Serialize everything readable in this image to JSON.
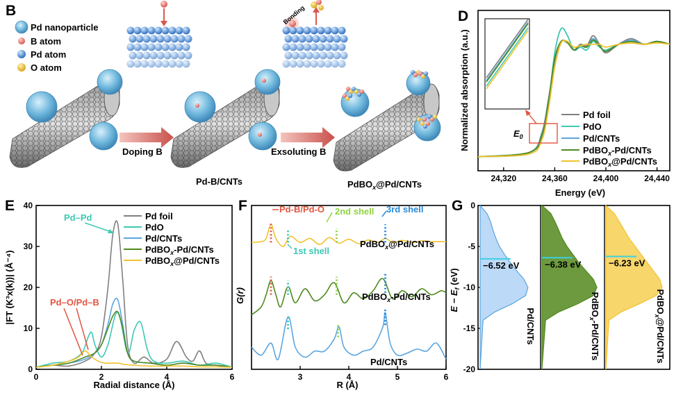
{
  "panels": {
    "B": {
      "label": "B",
      "legend": [
        "Pd nanoparticle",
        "B atom",
        "Pd atom",
        "O atom"
      ],
      "steps": [
        "Doping B",
        "Exsoluting B"
      ],
      "captions": [
        "Pd-B/CNTs",
        "PdBO",
        "x",
        "@Pd/CNTs"
      ],
      "bonding": "Bonding"
    },
    "D": {
      "label": "D"
    },
    "E": {
      "label": "E"
    },
    "F": {
      "label": "F"
    },
    "G": {
      "label": "G"
    }
  },
  "colors": {
    "pd_foil": "#7f7f7f",
    "pdo": "#3cc8b4",
    "pd_cnts": "#5aa6e0",
    "pdbox_pd_cnts": "#4e8a1f",
    "pdbox_at_pd_cnts": "#f2c230"
  },
  "chart_data": [
    {
      "panel": "D",
      "type": "line",
      "xlabel": "Energy (eV)",
      "ylabel": "Normalized absorption (a.u.)",
      "xlim": [
        24300,
        24450
      ],
      "x_ticks": [
        "24,320",
        "24,360",
        "24,400",
        "24,440"
      ],
      "x_tick_values": [
        24320,
        24360,
        24400,
        24440
      ],
      "legend": [
        "Pd foil",
        "PdO",
        "Pd/CNTs",
        "PdBO",
        "x",
        "-Pd/CNTs",
        "PdBO",
        "x",
        "@Pd/CNTs"
      ],
      "annotation": "E",
      "annotation_sub": "0",
      "series": [
        {
          "name": "Pd foil",
          "x": [
            24300,
            24340,
            24350,
            24355,
            24360,
            24365,
            24370,
            24375,
            24380,
            24385,
            24390,
            24395,
            24400,
            24410,
            24420,
            24430,
            24440,
            24450
          ],
          "y": [
            0.05,
            0.08,
            0.22,
            0.45,
            0.72,
            0.86,
            0.85,
            0.8,
            0.84,
            0.83,
            0.9,
            0.84,
            0.78,
            0.84,
            0.88,
            0.84,
            0.86,
            0.84
          ]
        },
        {
          "name": "PdO",
          "x": [
            24300,
            24340,
            24350,
            24355,
            24360,
            24365,
            24370,
            24375,
            24380,
            24385,
            24390,
            24395,
            24400,
            24410,
            24420,
            24430,
            24440,
            24450
          ],
          "y": [
            0.05,
            0.07,
            0.18,
            0.42,
            0.78,
            0.95,
            0.9,
            0.8,
            0.82,
            0.8,
            0.86,
            0.82,
            0.8,
            0.84,
            0.85,
            0.84,
            0.86,
            0.84
          ]
        },
        {
          "name": "Pd/CNTs",
          "x": [
            24300,
            24340,
            24350,
            24355,
            24360,
            24365,
            24370,
            24375,
            24380,
            24385,
            24390,
            24395,
            24400,
            24410,
            24420,
            24430,
            24440,
            24450
          ],
          "y": [
            0.05,
            0.08,
            0.21,
            0.44,
            0.73,
            0.86,
            0.85,
            0.8,
            0.83,
            0.82,
            0.88,
            0.83,
            0.79,
            0.84,
            0.87,
            0.84,
            0.86,
            0.84
          ]
        },
        {
          "name": "PdBOx-Pd/CNTs",
          "x": [
            24300,
            24340,
            24350,
            24355,
            24360,
            24365,
            24370,
            24375,
            24380,
            24385,
            24390,
            24395,
            24400,
            24410,
            24420,
            24430,
            24440,
            24450
          ],
          "y": [
            0.05,
            0.08,
            0.2,
            0.43,
            0.74,
            0.86,
            0.85,
            0.8,
            0.83,
            0.82,
            0.87,
            0.83,
            0.79,
            0.84,
            0.86,
            0.84,
            0.86,
            0.84
          ]
        },
        {
          "name": "PdBOx@Pd/CNTs",
          "x": [
            24300,
            24340,
            24350,
            24355,
            24360,
            24365,
            24370,
            24375,
            24380,
            24385,
            24390,
            24395,
            24400,
            24410,
            24420,
            24430,
            24440,
            24450
          ],
          "y": [
            0.05,
            0.07,
            0.17,
            0.38,
            0.68,
            0.85,
            0.86,
            0.82,
            0.83,
            0.84,
            0.84,
            0.84,
            0.82,
            0.84,
            0.85,
            0.84,
            0.85,
            0.84
          ]
        }
      ]
    },
    {
      "panel": "E",
      "type": "line",
      "xlabel": "Radial distance (Å)",
      "ylabel": "|FT (K³x(k))| (Å⁻⁴)",
      "xlim": [
        0,
        6
      ],
      "ylim": [
        0,
        40
      ],
      "x_ticks": [
        "0",
        "2",
        "4",
        "6"
      ],
      "y_ticks": [
        "0",
        "10",
        "20",
        "30",
        "40"
      ],
      "legend": [
        "Pd foil",
        "PdO",
        "Pd/CNTs",
        "PdBO",
        "x",
        "-Pd/CNTs",
        "PdBO",
        "x",
        "@Pd/CNTs"
      ],
      "annotations": [
        "Pd–Pd",
        "Pd–O/Pd–B"
      ],
      "series": [
        {
          "name": "Pd foil",
          "x": [
            0,
            0.5,
            1.0,
            1.5,
            1.8,
            2.0,
            2.2,
            2.35,
            2.5,
            2.65,
            2.8,
            3.0,
            3.3,
            3.6,
            4.0,
            4.3,
            4.6,
            4.8,
            5.0,
            5.2,
            5.5,
            6.0
          ],
          "y": [
            0.5,
            1,
            0.8,
            2,
            4,
            8,
            20,
            33,
            35.5,
            22,
            6,
            1.5,
            3,
            1.5,
            2.5,
            6.8,
            3,
            2,
            4.5,
            1.5,
            1,
            0.5
          ]
        },
        {
          "name": "PdO",
          "x": [
            0,
            0.5,
            1.0,
            1.4,
            1.6,
            1.7,
            1.8,
            2.0,
            2.2,
            2.5,
            2.8,
            3.0,
            3.2,
            3.4,
            3.6,
            4.0,
            4.5,
            5.0,
            5.5,
            6.0
          ],
          "y": [
            0.5,
            1.5,
            2,
            4,
            8,
            9,
            6,
            3,
            6,
            14,
            4,
            9.5,
            11.5,
            5,
            2,
            1.5,
            2,
            1,
            1.5,
            0.5
          ]
        },
        {
          "name": "Pd/CNTs",
          "x": [
            0,
            0.5,
            1.0,
            1.5,
            1.8,
            2.0,
            2.2,
            2.35,
            2.5,
            2.65,
            2.8,
            3.0,
            3.5,
            4.0,
            4.5,
            5.0,
            5.5,
            6.0
          ],
          "y": [
            0.5,
            1,
            1.5,
            2.5,
            4,
            6,
            11,
            16,
            17,
            11,
            4,
            2,
            1.5,
            1,
            1.5,
            1,
            1,
            0.5
          ]
        },
        {
          "name": "PdBOx-Pd/CNTs",
          "x": [
            0,
            0.5,
            1.0,
            1.5,
            1.8,
            2.0,
            2.2,
            2.35,
            2.5,
            2.65,
            2.8,
            3.0,
            3.5,
            4.0,
            4.5,
            5.0,
            5.5,
            6.0
          ],
          "y": [
            0.5,
            1,
            1.5,
            3,
            4,
            6,
            10,
            13,
            14,
            10,
            4,
            2,
            1.5,
            1,
            1.5,
            1,
            1,
            0.5
          ]
        },
        {
          "name": "PdBOx@Pd/CNTs",
          "x": [
            0,
            0.5,
            1.0,
            1.3,
            1.5,
            1.7,
            1.9,
            2.1,
            2.3,
            2.5,
            2.7,
            3.0,
            3.5,
            4.0,
            4.5,
            5.0,
            5.5,
            6.0
          ],
          "y": [
            0.5,
            1,
            2,
            3,
            4.5,
            3,
            2,
            1.5,
            1.5,
            1.5,
            1.2,
            1,
            0.8,
            0.8,
            0.8,
            0.6,
            0.6,
            0.5
          ]
        }
      ]
    },
    {
      "panel": "F",
      "type": "line",
      "xlabel": "R (Å)",
      "ylabel": "G(r)",
      "xlim": [
        2,
        6
      ],
      "x_ticks": [
        "3",
        "4",
        "5",
        "6"
      ],
      "x_tick_values": [
        3,
        4,
        5,
        6
      ],
      "annotations": [
        "Pd-B/Pd-O",
        "2nd shell",
        "3rd shell",
        "1st shell"
      ],
      "series_labels": [
        "PdBO",
        "x",
        "@Pd/CNTs",
        "PdBO",
        "x",
        "-Pd/CNTs",
        "Pd/CNTs"
      ],
      "series": [
        {
          "name": "PdBOx@Pd/CNTs",
          "offset": 2.6,
          "x": [
            2.0,
            2.2,
            2.3,
            2.4,
            2.5,
            2.65,
            2.8,
            3.0,
            3.2,
            3.4,
            3.6,
            3.8,
            4.0,
            4.2,
            4.4,
            4.6,
            4.75,
            4.9,
            5.1,
            5.3,
            5.5,
            5.7,
            6.0
          ],
          "y": [
            0,
            0.02,
            0.1,
            0.45,
            0.1,
            -0.1,
            0.15,
            0.0,
            0.1,
            -0.05,
            0.12,
            -0.02,
            0.08,
            -0.03,
            0.06,
            0.0,
            0.1,
            0.0,
            0.05,
            0.0,
            0.04,
            0.02,
            0.02
          ]
        },
        {
          "name": "PdBOx-Pd/CNTs",
          "offset": 1.3,
          "x": [
            2.0,
            2.2,
            2.3,
            2.4,
            2.5,
            2.6,
            2.75,
            2.9,
            3.1,
            3.3,
            3.5,
            3.7,
            3.9,
            4.1,
            4.3,
            4.5,
            4.7,
            4.9,
            5.1,
            5.3,
            5.5,
            5.7,
            5.9,
            6.0
          ],
          "y": [
            -0.5,
            -0.3,
            0.0,
            0.35,
            0.0,
            -0.3,
            0.2,
            -0.2,
            0.15,
            -0.15,
            0.0,
            0.3,
            -0.2,
            0.05,
            -0.1,
            0.1,
            0.4,
            -0.1,
            0.1,
            -0.05,
            0.15,
            0.0,
            0.1,
            0.05
          ]
        },
        {
          "name": "Pd/CNTs",
          "offset": 0.0,
          "x": [
            2.0,
            2.2,
            2.4,
            2.55,
            2.75,
            2.9,
            3.1,
            3.3,
            3.5,
            3.7,
            3.8,
            3.9,
            4.1,
            4.3,
            4.5,
            4.7,
            4.75,
            4.85,
            5.0,
            5.2,
            5.4,
            5.6,
            5.8,
            6.0
          ],
          "y": [
            0.0,
            -0.2,
            0.1,
            -0.3,
            0.75,
            0.0,
            -0.25,
            -0.1,
            -0.1,
            0.2,
            0.5,
            0.0,
            -0.2,
            -0.1,
            0.0,
            0.5,
            0.85,
            0.1,
            -0.2,
            -0.15,
            -0.05,
            -0.1,
            0.1,
            -0.3
          ]
        }
      ]
    },
    {
      "panel": "G",
      "type": "area",
      "ylabel": "E − E",
      "ylabel_sub": "f",
      "ylabel_unit": " (eV)",
      "ylim": [
        -20,
        0
      ],
      "y_ticks": [
        "0",
        "-5",
        "-10",
        "-15",
        "-20"
      ],
      "sample_labels": [
        "Pd/CNTs",
        "PdBO",
        "x",
        "-Pd/CNTs",
        "PdBO",
        "x",
        "@Pd/CNTs"
      ],
      "series": [
        {
          "name": "Pd/CNTs",
          "d_band_center_label": "−6.52 eV",
          "d_band_center": -6.52,
          "e": [
            0,
            -1,
            -2,
            -3,
            -4,
            -5,
            -6,
            -7,
            -8,
            -9,
            -10,
            -11,
            -12,
            -13,
            -14,
            -20
          ],
          "dos": [
            0.0,
            0.12,
            0.18,
            0.22,
            0.27,
            0.33,
            0.42,
            0.52,
            0.63,
            0.75,
            0.82,
            0.78,
            0.55,
            0.25,
            0.05,
            0.0
          ]
        },
        {
          "name": "PdBOx-Pd/CNTs",
          "d_band_center_label": "−6.38 eV",
          "d_band_center": -6.38,
          "e": [
            0,
            -1,
            -2,
            -3,
            -4,
            -5,
            -6,
            -7,
            -8,
            -9,
            -10,
            -11,
            -12,
            -13,
            -14,
            -20
          ],
          "dos": [
            0.0,
            0.15,
            0.22,
            0.28,
            0.34,
            0.42,
            0.52,
            0.62,
            0.74,
            0.86,
            0.92,
            0.86,
            0.6,
            0.28,
            0.06,
            0.0
          ]
        },
        {
          "name": "PdBOx@Pd/CNTs",
          "d_band_center_label": "−6.23 eV",
          "d_band_center": -6.23,
          "e": [
            0,
            -1,
            -2,
            -3,
            -4,
            -5,
            -6,
            -7,
            -8,
            -9,
            -10,
            -11,
            -12,
            -13,
            -14,
            -20
          ],
          "dos": [
            0.0,
            0.14,
            0.22,
            0.3,
            0.38,
            0.48,
            0.58,
            0.68,
            0.78,
            0.88,
            0.92,
            0.82,
            0.55,
            0.25,
            0.05,
            0.0
          ]
        }
      ]
    }
  ]
}
